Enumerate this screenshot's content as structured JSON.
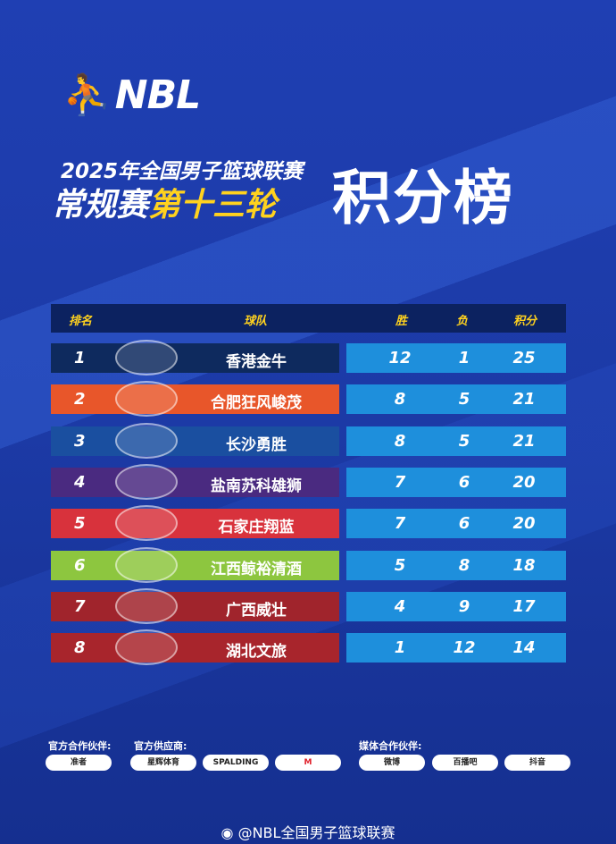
{
  "header": {
    "logo": "NBL",
    "line1": "2025年全国男子篮球联赛",
    "line2_a": "常规赛",
    "line2_b": "第十三轮",
    "title": "积分榜"
  },
  "table": {
    "columns": [
      "排名",
      "球队",
      "胜",
      "负",
      "积分"
    ],
    "rows": [
      {
        "rank": "1",
        "team": "香港金牛",
        "w": "12",
        "l": "1",
        "pts": "25",
        "color": "#0e2a5e"
      },
      {
        "rank": "2",
        "team": "合肥狂风峻茂",
        "w": "8",
        "l": "5",
        "pts": "21",
        "color": "#e8562a"
      },
      {
        "rank": "3",
        "team": "长沙勇胜",
        "w": "8",
        "l": "5",
        "pts": "21",
        "color": "#1a4fa0"
      },
      {
        "rank": "4",
        "team": "盐南苏科雄狮",
        "w": "7",
        "l": "6",
        "pts": "20",
        "color": "#4a2a80"
      },
      {
        "rank": "5",
        "team": "石家庄翔蓝",
        "w": "7",
        "l": "6",
        "pts": "20",
        "color": "#d8323c"
      },
      {
        "rank": "6",
        "team": "江西鲸裕清酒",
        "w": "5",
        "l": "8",
        "pts": "18",
        "color": "#8dc63f"
      },
      {
        "rank": "7",
        "team": "广西威壮",
        "w": "4",
        "l": "9",
        "pts": "17",
        "color": "#a0242c"
      },
      {
        "rank": "8",
        "team": "湖北文旅",
        "w": "1",
        "l": "12",
        "pts": "14",
        "color": "#a8252c"
      }
    ]
  },
  "partners": {
    "official_partner_label": "官方合作伙伴:",
    "supplier_label": "官方供应商:",
    "media_label": "媒体合作伙伴:",
    "official": [
      "准者"
    ],
    "suppliers": [
      "星辉体育",
      "SPALDING",
      "M"
    ],
    "media": [
      "微博",
      "百播吧",
      "抖音"
    ]
  },
  "footer": "@NBL全国男子篮球联赛"
}
